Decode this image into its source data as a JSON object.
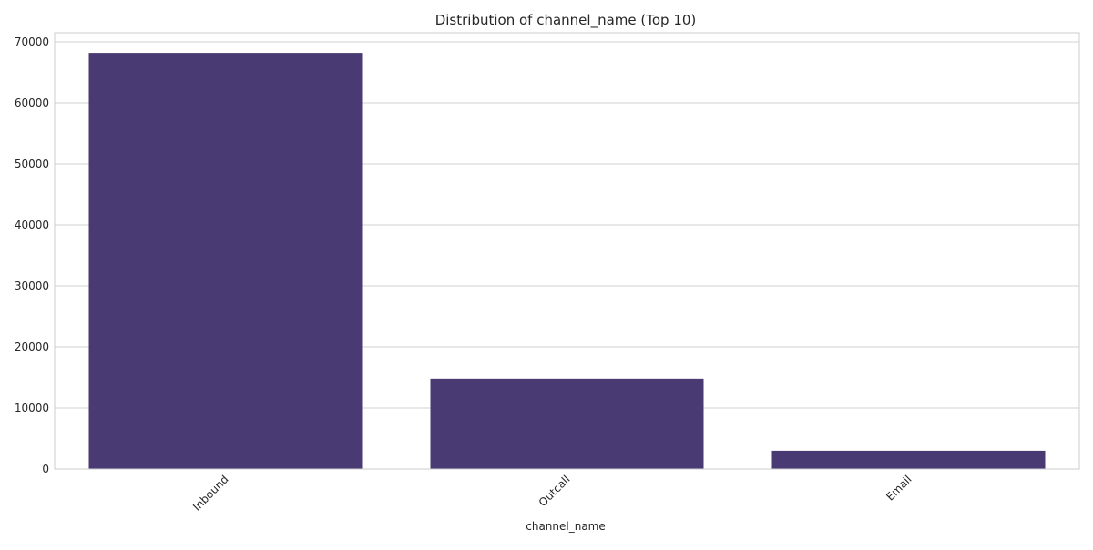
{
  "chart_data": {
    "type": "bar",
    "title": "Distribution of channel_name (Top 10)",
    "xlabel": "channel_name",
    "ylabel": "",
    "categories": [
      "Inbound",
      "Outcall",
      "Email"
    ],
    "values": [
      68200,
      14800,
      3000
    ],
    "ylim": [
      0,
      71500
    ],
    "yticks": [
      0,
      10000,
      20000,
      30000,
      40000,
      50000,
      60000,
      70000
    ],
    "grid": true,
    "bar_color": "#4a3a73",
    "grid_color": "#d0d0d0",
    "frame_color": "#cccccc",
    "text_color": "#262626"
  }
}
